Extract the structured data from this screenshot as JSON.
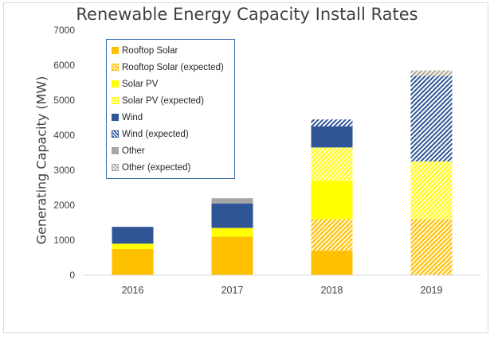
{
  "chart_data": {
    "type": "bar",
    "stacked": true,
    "title": "Renewable Energy Capacity Install Rates",
    "xlabel": "",
    "ylabel": "Generating Capacity (MW)",
    "ylim": [
      0,
      7000
    ],
    "yticks": [
      0,
      1000,
      2000,
      3000,
      4000,
      5000,
      6000,
      7000
    ],
    "categories": [
      "2016",
      "2017",
      "2018",
      "2019"
    ],
    "grid": false,
    "legend_position": "top-left",
    "series": [
      {
        "name": "Rooftop Solar",
        "values": [
          750,
          1100,
          700,
          0
        ],
        "color": "#ffc000",
        "pattern": "solid"
      },
      {
        "name": "Rooftop Solar (expected)",
        "values": [
          0,
          0,
          900,
          1600
        ],
        "color": "#ffc000",
        "pattern": "hatch"
      },
      {
        "name": "Solar PV",
        "values": [
          150,
          250,
          1100,
          0
        ],
        "color": "#ffff00",
        "pattern": "solid"
      },
      {
        "name": "Solar PV (expected)",
        "values": [
          0,
          0,
          950,
          1650
        ],
        "color": "#ffff00",
        "pattern": "hatch"
      },
      {
        "name": "Wind",
        "values": [
          480,
          700,
          600,
          0
        ],
        "color": "#2f5597",
        "pattern": "solid"
      },
      {
        "name": "Wind (expected)",
        "values": [
          0,
          0,
          200,
          2450
        ],
        "color": "#2f5597",
        "pattern": "hatch"
      },
      {
        "name": "Other",
        "values": [
          0,
          150,
          0,
          0
        ],
        "color": "#a6a6a6",
        "pattern": "solid"
      },
      {
        "name": "Other (expected)",
        "values": [
          0,
          0,
          0,
          150
        ],
        "color": "#a6a6a6",
        "pattern": "hatch"
      }
    ]
  }
}
